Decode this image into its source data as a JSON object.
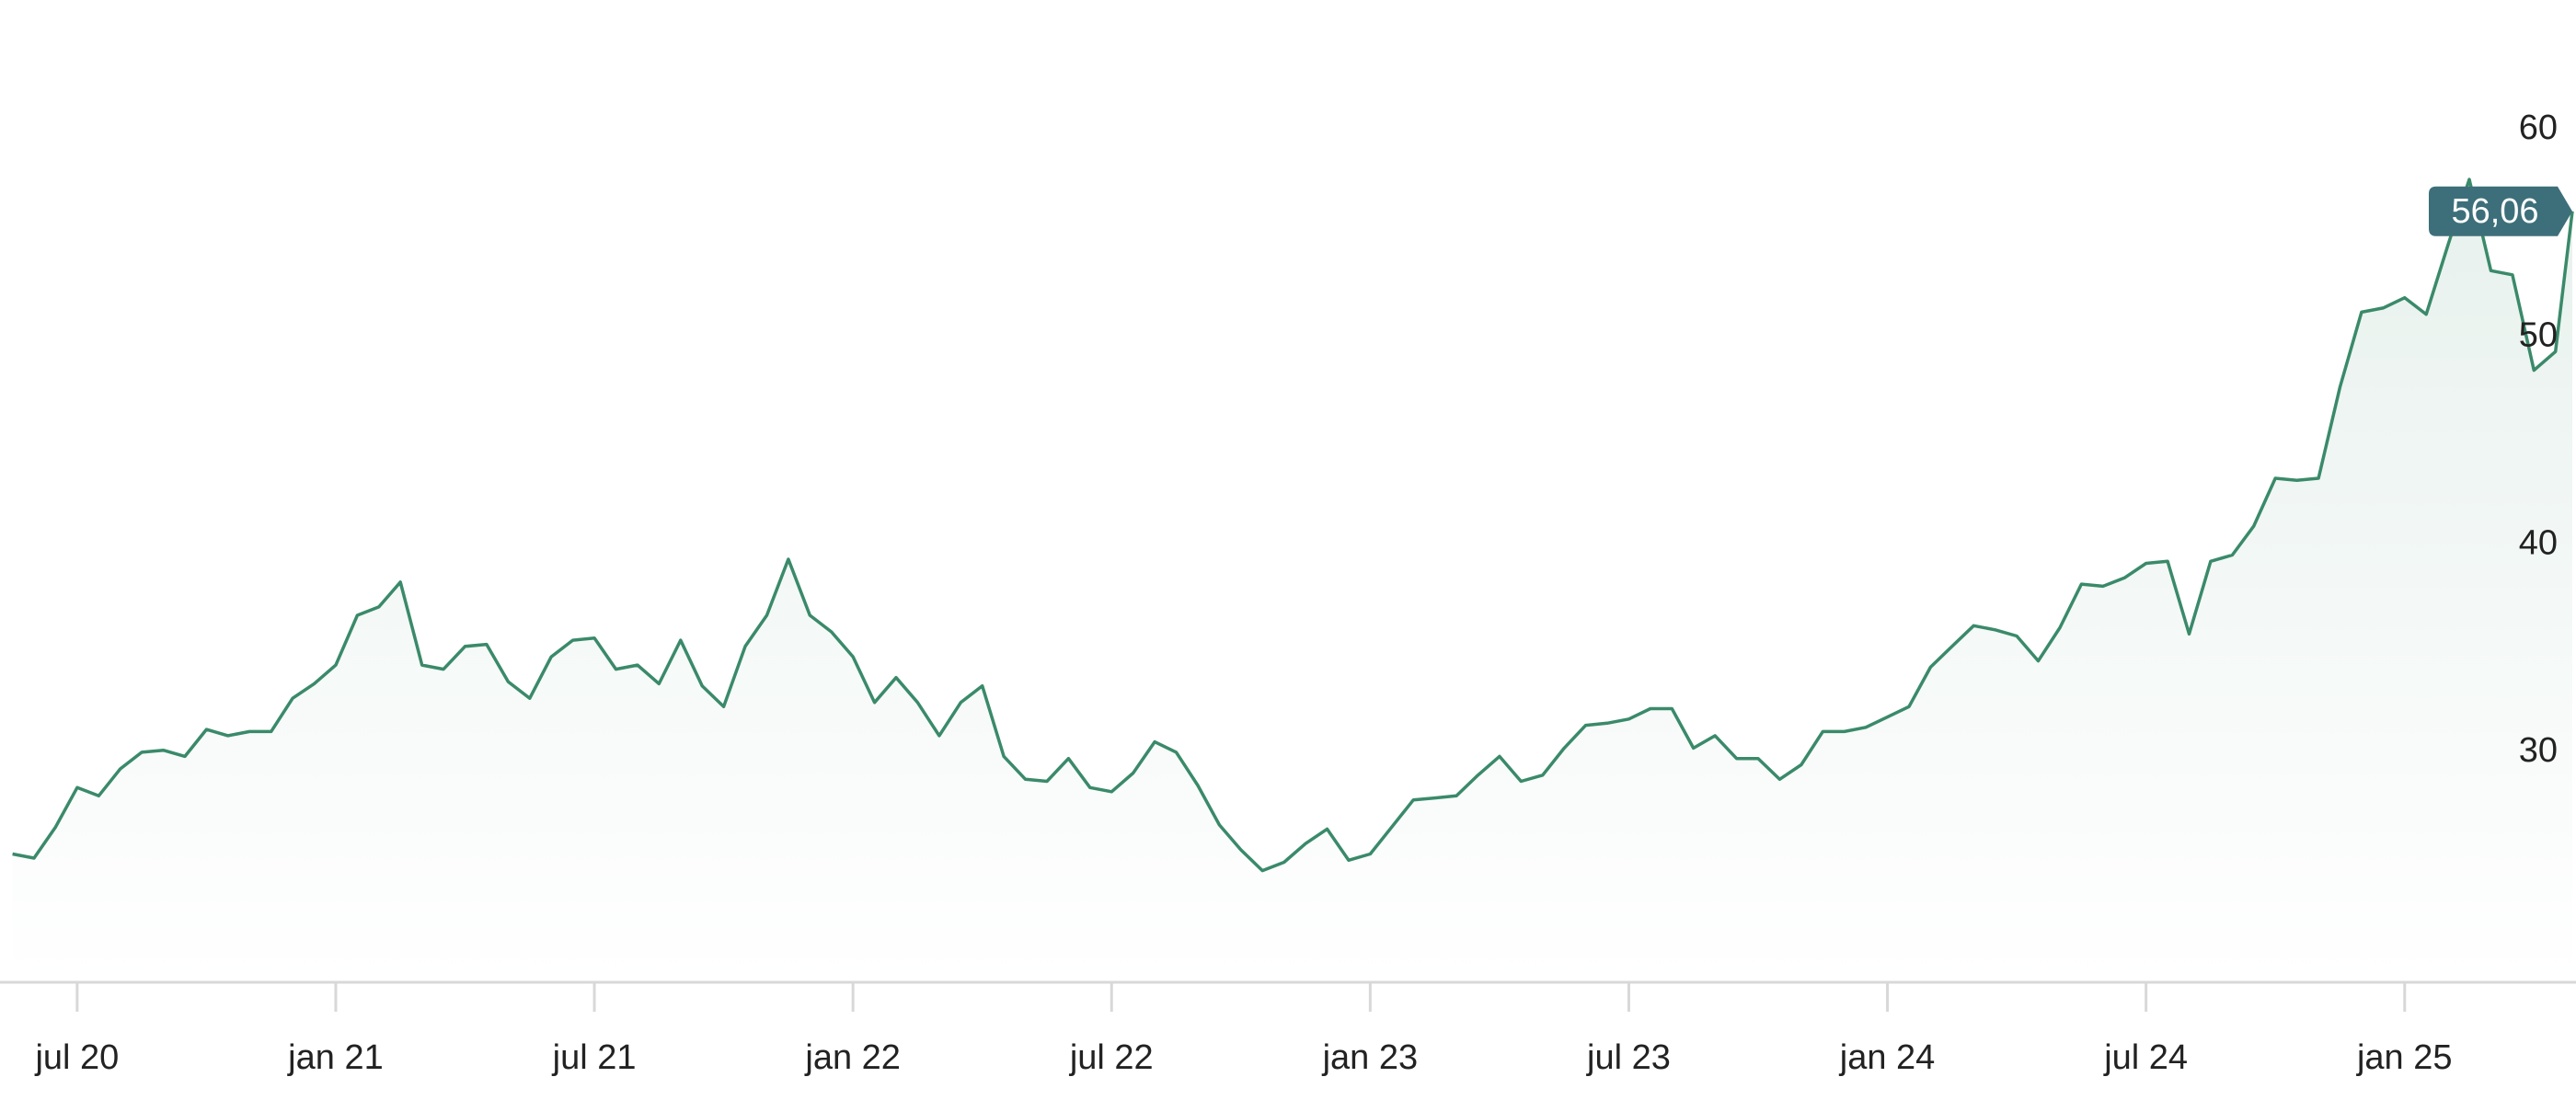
{
  "chart_data": {
    "type": "line",
    "x": [
      4.5,
      5,
      5.5,
      6,
      6.5,
      7,
      7.5,
      8,
      8.5,
      9,
      9.5,
      10,
      10.5,
      11,
      11.5,
      12,
      12.5,
      13,
      13.5,
      14,
      14.5,
      15,
      15.5,
      16,
      16.5,
      17,
      17.5,
      18,
      18.5,
      19,
      19.5,
      20,
      20.5,
      21,
      21.5,
      22,
      22.5,
      23,
      23.5,
      24,
      24.5,
      25,
      25.5,
      26,
      26.5,
      27,
      27.5,
      28,
      28.5,
      29,
      29.5,
      30,
      30.5,
      31,
      31.5,
      32,
      32.5,
      33,
      33.5,
      34,
      34.5,
      35,
      35.5,
      36,
      36.5,
      37,
      37.5,
      38,
      38.5,
      39,
      39.5,
      40,
      40.5,
      41,
      41.5,
      42,
      42.5,
      43,
      43.5,
      44,
      44.5,
      45,
      45.5,
      46,
      46.5,
      47,
      47.5,
      48,
      48.5,
      49,
      49.5,
      50,
      50.5,
      51,
      51.5,
      52,
      52.5,
      53,
      53.5,
      54,
      54.5,
      55,
      55.5,
      56,
      56.5,
      57,
      57.5,
      58,
      58.5,
      59,
      59.5,
      60,
      60.5,
      61,
      61.5,
      62,
      62.5,
      63,
      63.5,
      63.89
    ],
    "series": [
      {
        "color": "#3a8a6a",
        "values": [
          25.1,
          24.9,
          26.4,
          28.3,
          27.9,
          29.2,
          30.0,
          30.1,
          29.8,
          31.1,
          30.8,
          31.0,
          31.0,
          32.6,
          33.3,
          34.2,
          36.6,
          37.0,
          38.2,
          34.2,
          34.0,
          35.1,
          35.2,
          33.4,
          32.6,
          34.6,
          35.4,
          35.5,
          34.0,
          34.2,
          33.3,
          35.4,
          33.2,
          32.2,
          35.1,
          36.6,
          39.3,
          36.6,
          35.8,
          34.6,
          32.4,
          33.6,
          32.4,
          30.8,
          32.4,
          33.2,
          29.8,
          28.7,
          28.6,
          29.7,
          28.3,
          28.1,
          29.0,
          30.5,
          30.0,
          28.4,
          26.5,
          25.3,
          24.3,
          24.7,
          25.6,
          26.3,
          24.8,
          25.1,
          26.4,
          27.7,
          27.8,
          27.9,
          28.9,
          29.8,
          28.6,
          28.9,
          30.2,
          31.3,
          31.4,
          31.6,
          32.1,
          32.1,
          30.2,
          30.8,
          29.7,
          29.7,
          28.7,
          29.4,
          31.0,
          31.0,
          31.2,
          31.7,
          32.2,
          34.1,
          35.1,
          36.1,
          35.9,
          35.6,
          34.4,
          36.0,
          38.1,
          38.0,
          38.4,
          39.1,
          39.2,
          35.7,
          39.2,
          39.5,
          40.9,
          43.2,
          43.1,
          43.2,
          47.6,
          51.2,
          51.4,
          51.9,
          51.1,
          54.4,
          57.6,
          53.2,
          53.0,
          48.4,
          49.3,
          56.06
        ]
      }
    ],
    "marker": {
      "value": 56.06,
      "label": "56,06"
    },
    "xlim": [
      4.21,
      63.89
    ],
    "xticks": [
      {
        "value": 6,
        "label": "jul 20"
      },
      {
        "value": 12,
        "label": "jan 21"
      },
      {
        "value": 18,
        "label": "jul 21"
      },
      {
        "value": 24,
        "label": "jan 22"
      },
      {
        "value": 30,
        "label": "jul 22"
      },
      {
        "value": 36,
        "label": "jan 23"
      },
      {
        "value": 42,
        "label": "jul 23"
      },
      {
        "value": 48,
        "label": "jan 24"
      },
      {
        "value": 54,
        "label": "jul 24"
      },
      {
        "value": 60,
        "label": "jan 25"
      }
    ],
    "ylim": [
      18.92,
      66.24
    ],
    "yticks": [
      30,
      40,
      50,
      60
    ],
    "marker_color": "#3d6f7a"
  }
}
